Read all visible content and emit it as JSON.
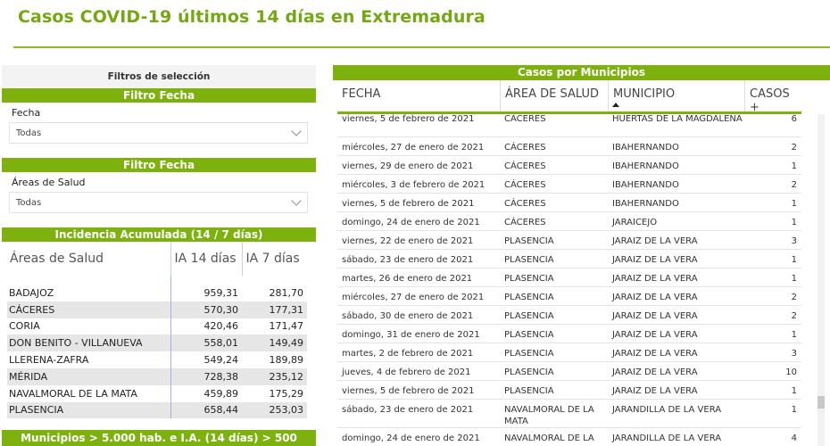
{
  "page": {
    "title": "Casos COVID-19 últimos 14 días en Extremadura"
  },
  "filters": {
    "header": "Filtros de selección",
    "date_bar": "Filtro Fecha",
    "date_label": "Fecha",
    "date_value": "Todas",
    "area_bar": "Filtro Fecha",
    "area_label": "Áreas de Salud",
    "area_value": "Todas"
  },
  "incidence": {
    "bar": "Incidencia Acumulada (14 / 7 días)",
    "headers": [
      "Áreas de Salud",
      "IA 14 días",
      "IA 7 días"
    ],
    "rows": [
      [
        "BADAJOZ",
        "959,31",
        "281,70"
      ],
      [
        "CÁCERES",
        "570,30",
        "177,31"
      ],
      [
        "CORIA",
        "420,46",
        "171,47"
      ],
      [
        "DON BENITO - VILLANUEVA",
        "558,01",
        "149,49"
      ],
      [
        "LLERENA-ZAFRA",
        "549,24",
        "189,89"
      ],
      [
        "MÉRIDA",
        "728,38",
        "235,12"
      ],
      [
        "NAVALMORAL DE LA MATA",
        "459,89",
        "175,29"
      ],
      [
        "PLASENCIA",
        "658,44",
        "253,03"
      ]
    ]
  },
  "municipios_bar": "Municipios > 5.000 hab. e I.A. (14 días) > 500",
  "cases": {
    "bar": "Casos por Municipios",
    "headers": {
      "fecha": "FECHA",
      "area": "ÁREA DE SALUD",
      "municipio": "MUNICIPIO",
      "casos": "CASOS +"
    },
    "rows": [
      [
        "viernes, 5 de febrero de 2021",
        "CÁCERES",
        "HUERTAS DE LA MAGDALENA",
        "6"
      ],
      [
        "miércoles, 27 de enero de 2021",
        "CÁCERES",
        "IBAHERNANDO",
        "2"
      ],
      [
        "viernes, 29 de enero de 2021",
        "CÁCERES",
        "IBAHERNANDO",
        "1"
      ],
      [
        "miércoles, 3 de febrero de 2021",
        "CÁCERES",
        "IBAHERNANDO",
        "2"
      ],
      [
        "viernes, 5 de febrero de 2021",
        "CÁCERES",
        "IBAHERNANDO",
        "1"
      ],
      [
        "domingo, 24 de enero de 2021",
        "CÁCERES",
        "JARAICEJO",
        "1"
      ],
      [
        "viernes, 22 de enero de 2021",
        "PLASENCIA",
        "JARAIZ DE LA VERA",
        "3"
      ],
      [
        "sábado, 23 de enero de 2021",
        "PLASENCIA",
        "JARAIZ DE LA VERA",
        "1"
      ],
      [
        "martes, 26 de enero de 2021",
        "PLASENCIA",
        "JARAIZ DE LA VERA",
        "1"
      ],
      [
        "miércoles, 27 de enero de 2021",
        "PLASENCIA",
        "JARAIZ DE LA VERA",
        "2"
      ],
      [
        "sábado, 30 de enero de 2021",
        "PLASENCIA",
        "JARAIZ DE LA VERA",
        "2"
      ],
      [
        "domingo, 31 de enero de 2021",
        "PLASENCIA",
        "JARAIZ DE LA VERA",
        "1"
      ],
      [
        "martes, 2 de febrero de 2021",
        "PLASENCIA",
        "JARAIZ DE LA VERA",
        "3"
      ],
      [
        "jueves, 4 de febrero de 2021",
        "PLASENCIA",
        "JARAIZ DE LA VERA",
        "10"
      ],
      [
        "viernes, 5 de febrero de 2021",
        "PLASENCIA",
        "JARAIZ DE LA VERA",
        "1"
      ],
      [
        "sábado, 23 de enero de 2021",
        "NAVALMORAL DE LA MATA",
        "JARANDILLA DE LA VERA",
        "1"
      ],
      [
        "domingo, 24 de enero de 2021",
        "NAVALMORAL DE LA MATA",
        "JARANDILLA DE LA VERA",
        "4"
      ]
    ]
  },
  "colors": {
    "accent": "#7cb10e",
    "title": "#74a812"
  }
}
